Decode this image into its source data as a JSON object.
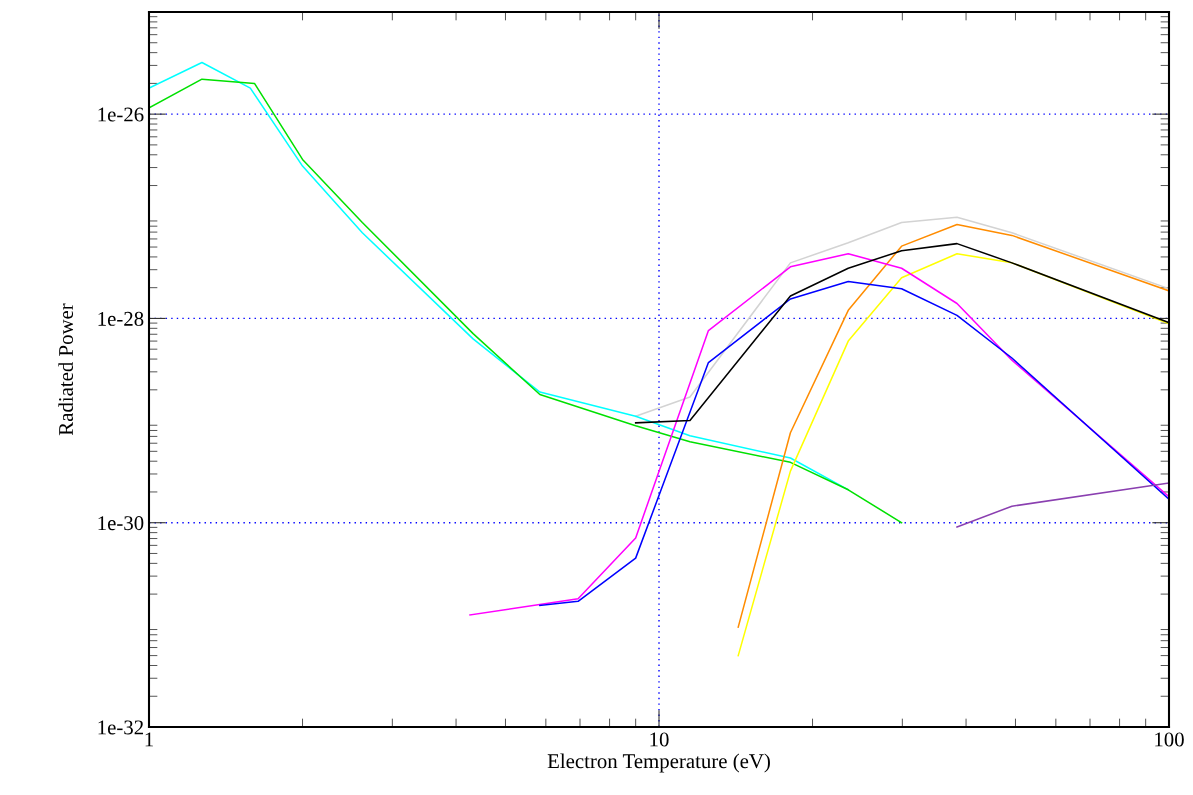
{
  "chart_data": {
    "type": "line",
    "xlabel": "Electron Temperature (eV)",
    "ylabel": "Radiated Power",
    "log": "xy",
    "grid": true,
    "marker": "none",
    "line_style": "solid",
    "xlim": [
      1,
      100
    ],
    "xticks": [
      1,
      10,
      100
    ],
    "ylim": [
      1e-32,
      1e-25
    ],
    "yticks": [
      {
        "value": 1e-32,
        "label": "1e-32"
      },
      {
        "value": 1e-30,
        "label": "1e-30"
      },
      {
        "value": 1e-28,
        "label": "1e-28"
      },
      {
        "value": 1e-26,
        "label": "1e-26"
      }
    ],
    "series": [
      {
        "color": "#d3d3d3",
        "x": [
          9.0,
          11.5,
          18.1,
          23.5,
          29.9,
          38.4,
          49.2,
          100
        ],
        "values": [
          1.1e-29,
          1.7e-29,
          3.5e-28,
          5.5e-28,
          8.7e-28,
          9.8e-28,
          6.9e-28,
          1.95e-28
        ]
      },
      {
        "color": "#00ffff",
        "x": [
          1,
          1.27,
          1.58,
          2.0,
          2.62,
          4.32,
          5.84,
          9.0,
          11.5,
          18.1,
          23.5
        ],
        "values": [
          1.8e-26,
          3.2e-26,
          1.8e-26,
          3.1e-27,
          6.9e-28,
          6.3e-29,
          1.9e-29,
          1.1e-29,
          7.1e-30,
          4.3e-30,
          2.1e-30
        ]
      },
      {
        "color": "#00e000",
        "x": [
          1,
          1.27,
          1.61,
          2.0,
          2.62,
          4.32,
          5.84,
          9.0,
          11.5,
          18.1,
          23.5,
          29.9
        ],
        "values": [
          1.15e-26,
          2.2e-26,
          2e-26,
          3.6e-27,
          8.7e-28,
          7.1e-29,
          1.8e-29,
          8.9e-30,
          6.2e-30,
          3.9e-30,
          2.1e-30,
          1e-30
        ]
      },
      {
        "color": "#ff8c00",
        "x": [
          14.3,
          18.1,
          23.5,
          29.9,
          38.4,
          49.2,
          100
        ],
        "values": [
          9.5e-32,
          7.6e-30,
          1.2e-28,
          5.1e-28,
          8.3e-28,
          6.5e-28,
          1.86e-28
        ]
      },
      {
        "color": "#ffff00",
        "x": [
          14.3,
          18.1,
          23.5,
          29.9,
          38.4,
          49.2,
          100
        ],
        "values": [
          5e-32,
          3.2e-30,
          6e-29,
          2.5e-28,
          4.3e-28,
          3.5e-28,
          8.9e-29
        ]
      },
      {
        "color": "#ff00ff",
        "x": [
          4.26,
          6.94,
          9.0,
          12.5,
          18.1,
          23.5,
          29.9,
          38.4,
          49.2,
          100
        ],
        "values": [
          1.25e-31,
          1.8e-31,
          7.1e-31,
          7.6e-29,
          3.2e-28,
          4.3e-28,
          3.1e-28,
          1.4e-28,
          3.9e-29,
          1.8e-30
        ]
      },
      {
        "color": "#0000ff",
        "x": [
          5.84,
          6.94,
          9.0,
          12.5,
          18.1,
          23.5,
          29.9,
          38.4,
          49.2,
          100
        ],
        "values": [
          1.55e-31,
          1.7e-31,
          4.5e-31,
          3.7e-29,
          1.55e-28,
          2.3e-28,
          1.95e-28,
          1.07e-28,
          4.1e-29,
          1.7e-30
        ]
      },
      {
        "color": "#000000",
        "x": [
          9.0,
          11.5,
          18.1,
          23.5,
          29.9,
          38.4,
          49.2,
          100
        ],
        "values": [
          9.5e-30,
          1e-29,
          1.66e-28,
          3.1e-28,
          4.6e-28,
          5.4e-28,
          3.5e-28,
          9.1e-29
        ]
      },
      {
        "color": "#8a3fb0",
        "x": [
          38.4,
          49.2,
          100
        ],
        "values": [
          9.1e-31,
          1.45e-30,
          2.45e-30
        ]
      }
    ]
  }
}
